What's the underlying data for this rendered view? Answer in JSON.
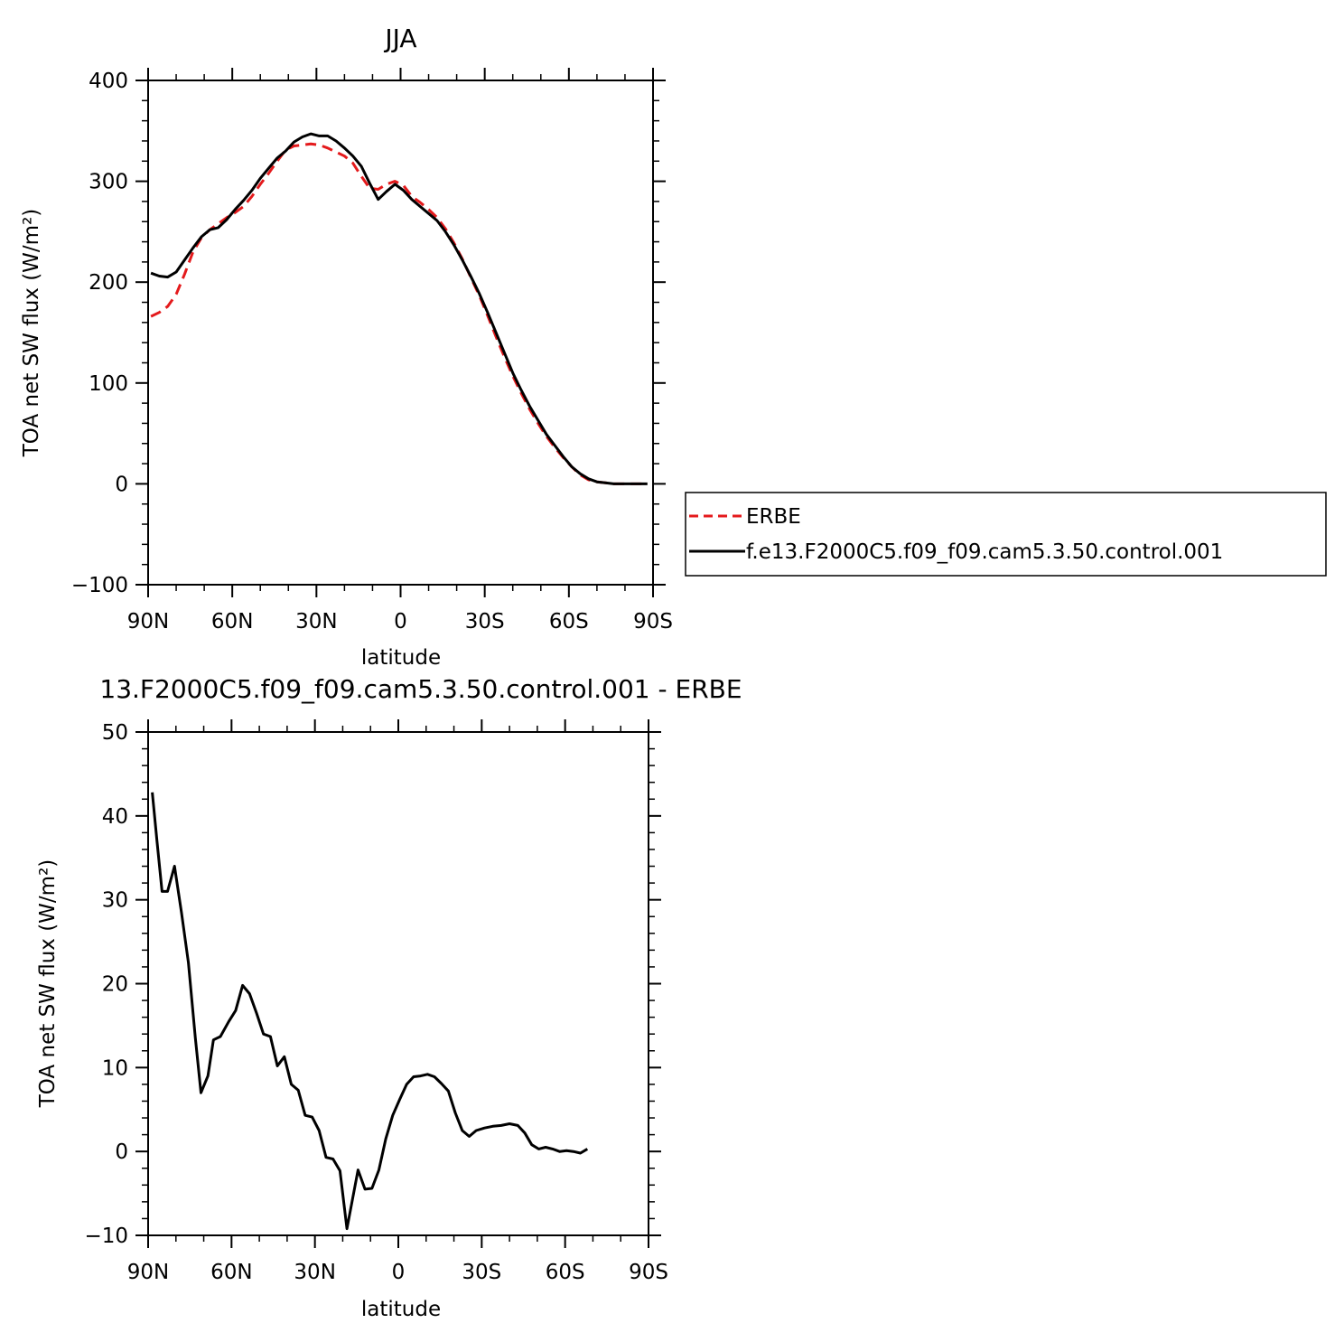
{
  "chart_data": [
    {
      "type": "line",
      "title": "JJA",
      "xlabel": "latitude",
      "ylabel": "TOA net SW flux (W/m²)",
      "xlim": [
        90,
        -90
      ],
      "ylim": [
        -100,
        400
      ],
      "yticks": [
        -100,
        0,
        100,
        200,
        300,
        400
      ],
      "xticks": [
        {
          "value": 90,
          "label": "90N"
        },
        {
          "value": 60,
          "label": "60N"
        },
        {
          "value": 30,
          "label": "30N"
        },
        {
          "value": 0,
          "label": "0"
        },
        {
          "value": -30,
          "label": "30S"
        },
        {
          "value": -60,
          "label": "60S"
        },
        {
          "value": -90,
          "label": "90S"
        }
      ],
      "grid": false,
      "legend_position": "right",
      "series": [
        {
          "name": "ERBE",
          "color": "#e41a1c",
          "dash": "dashed",
          "points": [
            [
              89,
              166
            ],
            [
              86,
              170
            ],
            [
              83,
              176
            ],
            [
              80,
              188
            ],
            [
              77,
              208
            ],
            [
              74,
              230
            ],
            [
              71,
              244
            ],
            [
              68,
              252
            ],
            [
              65,
              258
            ],
            [
              62,
              264
            ],
            [
              59,
              269
            ],
            [
              56,
              275
            ],
            [
              53,
              285
            ],
            [
              50,
              297
            ],
            [
              47,
              308
            ],
            [
              44,
              320
            ],
            [
              41,
              331
            ],
            [
              38,
              335
            ],
            [
              35,
              336
            ],
            [
              32,
              337
            ],
            [
              29,
              336
            ],
            [
              26,
              333
            ],
            [
              23,
              329
            ],
            [
              20,
              325
            ],
            [
              17,
              318
            ],
            [
              14,
              305
            ],
            [
              11,
              293
            ],
            [
              8,
              292
            ],
            [
              5,
              297
            ],
            [
              2,
              300
            ],
            [
              -1,
              296
            ],
            [
              -4,
              285
            ],
            [
              -7,
              279
            ],
            [
              -10,
              272
            ],
            [
              -13,
              264
            ],
            [
              -16,
              253
            ],
            [
              -19,
              239
            ],
            [
              -22,
              223
            ],
            [
              -25,
              205
            ],
            [
              -28,
              187
            ],
            [
              -31,
              167
            ],
            [
              -34,
              146
            ],
            [
              -37,
              126
            ],
            [
              -40,
              107
            ],
            [
              -43,
              90
            ],
            [
              -46,
              74
            ],
            [
              -49,
              60
            ],
            [
              -52,
              47
            ],
            [
              -55,
              36
            ],
            [
              -58,
              26
            ],
            [
              -61,
              17
            ],
            [
              -64,
              9
            ],
            [
              -67,
              4
            ],
            [
              -70,
              2
            ],
            [
              -73,
              1
            ],
            [
              -76,
              0
            ],
            [
              -79,
              0
            ],
            [
              -82,
              0
            ],
            [
              -85,
              0
            ],
            [
              -88,
              0
            ]
          ]
        },
        {
          "name": "f.e13.F2000C5.f09_f09.cam5.3.50.control.001",
          "color": "#000000",
          "dash": "solid",
          "points": [
            [
              89,
              209
            ],
            [
              86,
              206
            ],
            [
              83,
              205
            ],
            [
              80,
              210
            ],
            [
              77,
              222
            ],
            [
              74,
              234
            ],
            [
              71,
              245
            ],
            [
              68,
              252
            ],
            [
              65,
              254
            ],
            [
              62,
              262
            ],
            [
              59,
              272
            ],
            [
              56,
              281
            ],
            [
              53,
              291
            ],
            [
              50,
              303
            ],
            [
              47,
              313
            ],
            [
              44,
              323
            ],
            [
              41,
              330
            ],
            [
              38,
              339
            ],
            [
              35,
              344
            ],
            [
              32,
              347
            ],
            [
              29,
              345
            ],
            [
              26,
              345
            ],
            [
              23,
              340
            ],
            [
              20,
              333
            ],
            [
              17,
              325
            ],
            [
              14,
              315
            ],
            [
              11,
              298
            ],
            [
              8,
              282
            ],
            [
              5,
              290
            ],
            [
              2,
              297
            ],
            [
              -1,
              291
            ],
            [
              -4,
              282
            ],
            [
              -7,
              275
            ],
            [
              -10,
              268
            ],
            [
              -13,
              261
            ],
            [
              -16,
              250
            ],
            [
              -19,
              237
            ],
            [
              -22,
              222
            ],
            [
              -25,
              206
            ],
            [
              -28,
              189
            ],
            [
              -31,
              170
            ],
            [
              -34,
              150
            ],
            [
              -37,
              130
            ],
            [
              -40,
              110
            ],
            [
              -43,
              93
            ],
            [
              -46,
              77
            ],
            [
              -49,
              63
            ],
            [
              -52,
              49
            ],
            [
              -55,
              38
            ],
            [
              -58,
              27
            ],
            [
              -61,
              17
            ],
            [
              -64,
              10
            ],
            [
              -67,
              5
            ],
            [
              -70,
              2
            ],
            [
              -73,
              1
            ],
            [
              -76,
              0
            ],
            [
              -79,
              0
            ],
            [
              -82,
              0
            ],
            [
              -85,
              0
            ],
            [
              -88,
              0
            ]
          ]
        }
      ]
    },
    {
      "type": "line",
      "title": "13.F2000C5.f09_f09.cam5.3.50.control.001 - ERBE",
      "xlabel": "latitude",
      "ylabel": "TOA net SW flux (W/m²)",
      "xlim": [
        90,
        -90
      ],
      "ylim": [
        -10,
        50
      ],
      "yticks": [
        -10,
        0,
        10,
        20,
        30,
        40,
        50
      ],
      "xticks": [
        {
          "value": 90,
          "label": "90N"
        },
        {
          "value": 60,
          "label": "60N"
        },
        {
          "value": 30,
          "label": "30N"
        },
        {
          "value": 0,
          "label": "0"
        },
        {
          "value": -30,
          "label": "30S"
        },
        {
          "value": -60,
          "label": "60S"
        },
        {
          "value": -90,
          "label": "90S"
        }
      ],
      "grid": false,
      "series": [
        {
          "name": "",
          "color": "#000000",
          "dash": "solid",
          "points": [
            [
              88.5,
              42.8
            ],
            [
              86.8,
              37.0
            ],
            [
              85.0,
              31.0
            ],
            [
              83.0,
              31.0
            ],
            [
              80.5,
              34.0
            ],
            [
              78.0,
              28.5
            ],
            [
              75.5,
              22.5
            ],
            [
              73.0,
              13.5
            ],
            [
              71.0,
              7.0
            ],
            [
              68.5,
              9.0
            ],
            [
              66.5,
              13.3
            ],
            [
              64.0,
              13.7
            ],
            [
              61.0,
              15.5
            ],
            [
              58.5,
              16.8
            ],
            [
              56.0,
              19.8
            ],
            [
              53.5,
              18.8
            ],
            [
              51.0,
              16.5
            ],
            [
              48.5,
              14.0
            ],
            [
              46.0,
              13.7
            ],
            [
              43.5,
              10.2
            ],
            [
              41.0,
              11.3
            ],
            [
              38.5,
              8.0
            ],
            [
              36.0,
              7.3
            ],
            [
              33.5,
              4.3
            ],
            [
              31.0,
              4.1
            ],
            [
              28.5,
              2.5
            ],
            [
              26.0,
              -0.7
            ],
            [
              23.5,
              -0.9
            ],
            [
              21.0,
              -2.3
            ],
            [
              18.5,
              -9.2
            ],
            [
              14.5,
              -2.2
            ],
            [
              12.0,
              -4.5
            ],
            [
              9.5,
              -4.4
            ],
            [
              7.0,
              -2.2
            ],
            [
              4.5,
              1.5
            ],
            [
              2.0,
              4.3
            ],
            [
              -0.5,
              6.2
            ],
            [
              -3.0,
              8.0
            ],
            [
              -5.5,
              8.9
            ],
            [
              -8.0,
              9.0
            ],
            [
              -10.5,
              9.2
            ],
            [
              -13.0,
              8.9
            ],
            [
              -15.5,
              8.1
            ],
            [
              -18.0,
              7.2
            ],
            [
              -20.5,
              4.6
            ],
            [
              -23.0,
              2.5
            ],
            [
              -25.5,
              1.8
            ],
            [
              -28.0,
              2.5
            ],
            [
              -31.0,
              2.8
            ],
            [
              -34.0,
              3.0
            ],
            [
              -37.0,
              3.1
            ],
            [
              -40.0,
              3.3
            ],
            [
              -43.0,
              3.1
            ],
            [
              -45.5,
              2.2
            ],
            [
              -48.0,
              0.8
            ],
            [
              -50.5,
              0.3
            ],
            [
              -53.0,
              0.5
            ],
            [
              -55.5,
              0.3
            ],
            [
              -58.0,
              0.0
            ],
            [
              -60.5,
              0.1
            ],
            [
              -63.0,
              0.0
            ],
            [
              -65.5,
              -0.2
            ],
            [
              -68.0,
              0.3
            ]
          ]
        }
      ]
    }
  ]
}
